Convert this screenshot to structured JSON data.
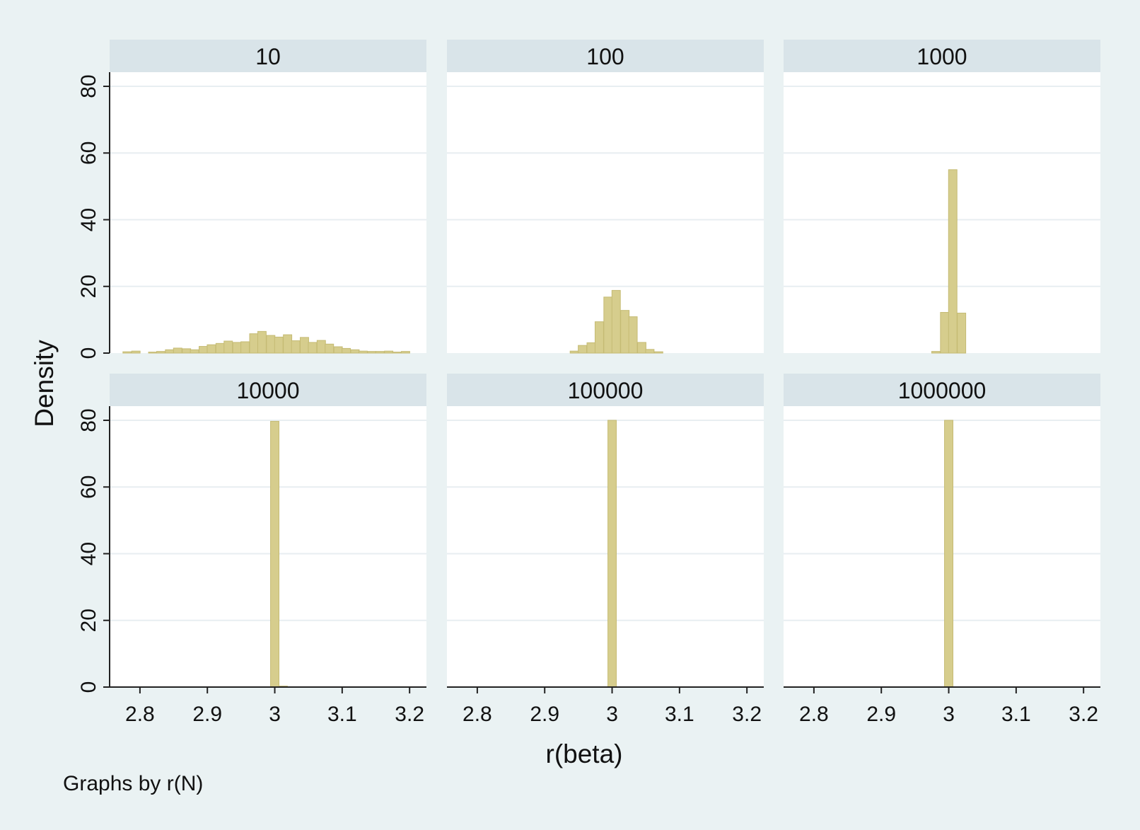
{
  "chart_data": {
    "type": "bar",
    "chart_kind": "histogram",
    "layout": {
      "rows": 2,
      "cols": 3
    },
    "xlabel": "r(beta)",
    "ylabel": "Density",
    "note": "Graphs by r(N)",
    "xlim": [
      2.755,
      3.225
    ],
    "ylim": [
      0,
      84
    ],
    "xticks": [
      2.8,
      2.9,
      3,
      3.1,
      3.2
    ],
    "yticks": [
      0,
      20,
      40,
      60,
      80
    ],
    "grid": true,
    "bar_color": "#d6cd8d",
    "bar_edge_color": "#c5bb74",
    "strip_color": "#d9e4e9",
    "background_color": "#eaf2f3",
    "panels": [
      {
        "label": "10",
        "bin_width": 0.0125,
        "bins": [
          {
            "x": 2.781,
            "y": 0.4
          },
          {
            "x": 2.794,
            "y": 0.6
          },
          {
            "x": 2.819,
            "y": 0.3
          },
          {
            "x": 2.831,
            "y": 0.5
          },
          {
            "x": 2.844,
            "y": 1.0
          },
          {
            "x": 2.856,
            "y": 1.5
          },
          {
            "x": 2.869,
            "y": 1.3
          },
          {
            "x": 2.881,
            "y": 1.0
          },
          {
            "x": 2.894,
            "y": 2.0
          },
          {
            "x": 2.906,
            "y": 2.5
          },
          {
            "x": 2.919,
            "y": 2.9
          },
          {
            "x": 2.931,
            "y": 3.6
          },
          {
            "x": 2.944,
            "y": 3.2
          },
          {
            "x": 2.956,
            "y": 3.4
          },
          {
            "x": 2.969,
            "y": 5.8
          },
          {
            "x": 2.981,
            "y": 6.5
          },
          {
            "x": 2.994,
            "y": 5.3
          },
          {
            "x": 3.006,
            "y": 4.8
          },
          {
            "x": 3.019,
            "y": 5.5
          },
          {
            "x": 3.031,
            "y": 3.7
          },
          {
            "x": 3.044,
            "y": 4.7
          },
          {
            "x": 3.056,
            "y": 3.2
          },
          {
            "x": 3.069,
            "y": 3.8
          },
          {
            "x": 3.081,
            "y": 2.7
          },
          {
            "x": 3.094,
            "y": 1.9
          },
          {
            "x": 3.106,
            "y": 1.4
          },
          {
            "x": 3.119,
            "y": 1.0
          },
          {
            "x": 3.131,
            "y": 0.6
          },
          {
            "x": 3.144,
            "y": 0.5
          },
          {
            "x": 3.156,
            "y": 0.5
          },
          {
            "x": 3.169,
            "y": 0.6
          },
          {
            "x": 3.181,
            "y": 0.3
          },
          {
            "x": 3.194,
            "y": 0.5
          }
        ]
      },
      {
        "label": "100",
        "bin_width": 0.0125,
        "bins": [
          {
            "x": 2.944,
            "y": 0.6
          },
          {
            "x": 2.956,
            "y": 2.3
          },
          {
            "x": 2.969,
            "y": 3.1
          },
          {
            "x": 2.981,
            "y": 9.4
          },
          {
            "x": 2.994,
            "y": 16.8
          },
          {
            "x": 3.006,
            "y": 18.8
          },
          {
            "x": 3.019,
            "y": 12.8
          },
          {
            "x": 3.031,
            "y": 10.9
          },
          {
            "x": 3.044,
            "y": 3.2
          },
          {
            "x": 3.056,
            "y": 1.1
          },
          {
            "x": 3.069,
            "y": 0.4
          }
        ]
      },
      {
        "label": "1000",
        "bin_width": 0.0125,
        "bins": [
          {
            "x": 2.981,
            "y": 0.5
          },
          {
            "x": 2.994,
            "y": 12.2
          },
          {
            "x": 3.006,
            "y": 55.0
          },
          {
            "x": 3.019,
            "y": 12.0
          }
        ]
      },
      {
        "label": "10000",
        "bin_width": 0.0125,
        "bins": [
          {
            "x": 3.0,
            "y": 79.7
          },
          {
            "x": 3.0125,
            "y": 0.3
          }
        ]
      },
      {
        "label": "100000",
        "bin_width": 0.0125,
        "bins": [
          {
            "x": 3.0,
            "y": 80.0
          }
        ]
      },
      {
        "label": "1000000",
        "bin_width": 0.0125,
        "bins": [
          {
            "x": 3.0,
            "y": 80.0
          }
        ]
      }
    ]
  }
}
